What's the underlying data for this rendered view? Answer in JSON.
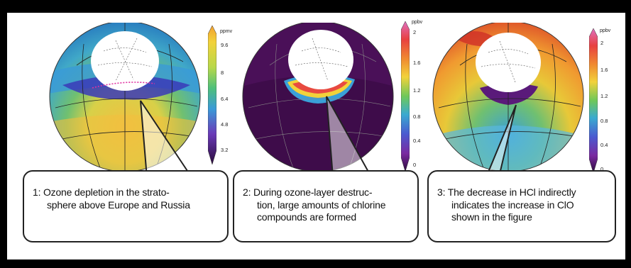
{
  "colors": {
    "background": "#000000",
    "panel": "#ffffff",
    "callout_border": "#222222"
  },
  "globes": [
    {
      "id": "ozone",
      "unit": "ppmv",
      "ticks": [
        "9.6",
        "8",
        "6.4",
        "4.8",
        "3.2"
      ],
      "caption": [
        "1: Ozone depletion in the strato-",
        "sphere above Europe and Russia"
      ]
    },
    {
      "id": "chlorine",
      "unit": "ppbv",
      "ticks": [
        "2",
        "1.6",
        "1.2",
        "0.8",
        "0.4",
        "0"
      ],
      "caption": [
        "2: During ozone-layer destruc-",
        "tion, large amounts of chlorine",
        "compounds are formed"
      ]
    },
    {
      "id": "hcl",
      "unit": "ppbv",
      "ticks": [
        "2",
        "1.6",
        "1.2",
        "0.8",
        "0.4",
        "0"
      ],
      "caption": [
        "3: The decrease in HCl indirectly",
        "indicates the increase in ClO",
        "shown in the figure"
      ]
    }
  ]
}
